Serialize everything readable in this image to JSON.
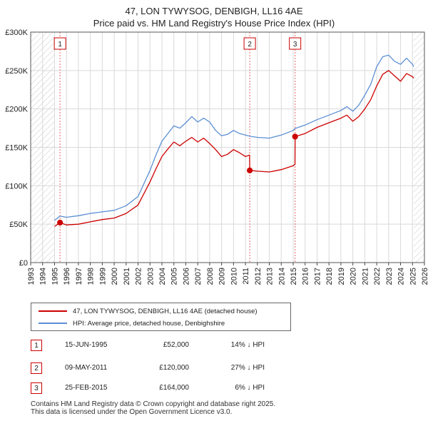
{
  "chart_data": {
    "type": "line",
    "title": "47, LON TYWYSOG, DENBIGH, LL16 4AE",
    "subtitle": "Price paid vs. HM Land Registry's House Price Index (HPI)",
    "xlabel": "",
    "ylabel": "",
    "xlim": [
      1993,
      2026
    ],
    "ylim": [
      0,
      300000
    ],
    "ytick_values": [
      0,
      50000,
      100000,
      150000,
      200000,
      250000,
      300000
    ],
    "ytick_labels": [
      "£0",
      "£50K",
      "£100K",
      "£150K",
      "£200K",
      "£250K",
      "£300K"
    ],
    "xtick_labels": [
      "1993",
      "1994",
      "1995",
      "1996",
      "1997",
      "1998",
      "1999",
      "2000",
      "2001",
      "2002",
      "2003",
      "2004",
      "2005",
      "2006",
      "2007",
      "2008",
      "2009",
      "2010",
      "2011",
      "2012",
      "2013",
      "2014",
      "2015",
      "2016",
      "2017",
      "2018",
      "2019",
      "2020",
      "2021",
      "2022",
      "2023",
      "2024",
      "2025",
      "2026"
    ],
    "grid": true,
    "hatched_before": 1995.0,
    "hatched_after": 2025.1,
    "series": [
      {
        "name": "47, LON TYWYSOG, DENBIGH, LL16 4AE (detached house)",
        "color": "#cc0000",
        "x": [
          1995.0,
          1995.46,
          1996.0,
          1997.0,
          1998.0,
          1999.0,
          2000.0,
          2001.0,
          2002.0,
          2002.5,
          2003.0,
          2003.5,
          2004.0,
          2004.5,
          2005.0,
          2005.5,
          2006.0,
          2006.5,
          2007.0,
          2007.5,
          2008.0,
          2008.5,
          2009.0,
          2009.5,
          2010.0,
          2010.5,
          2011.0,
          2011.35,
          2011.36,
          2012.0,
          2013.0,
          2014.0,
          2015.0,
          2015.15,
          2015.16,
          2016.0,
          2017.0,
          2018.0,
          2019.0,
          2019.5,
          2020.0,
          2020.5,
          2021.0,
          2021.5,
          2022.0,
          2022.5,
          2023.0,
          2023.5,
          2024.0,
          2024.5,
          2025.0,
          2025.1
        ],
        "y": [
          47000,
          52000,
          49000,
          50000,
          53000,
          56000,
          58000,
          64000,
          75000,
          90000,
          105000,
          122000,
          138000,
          148000,
          157000,
          152000,
          158000,
          163000,
          157000,
          162000,
          155000,
          147000,
          138000,
          141000,
          147000,
          143000,
          138000,
          140000,
          120000,
          119000,
          118000,
          121000,
          126000,
          128000,
          164000,
          168000,
          176000,
          182000,
          188000,
          192000,
          184000,
          190000,
          200000,
          212000,
          230000,
          245000,
          250000,
          243000,
          236000,
          246000,
          242000,
          240000
        ]
      },
      {
        "name": "HPI: Average price, detached house, Denbighshire",
        "color": "#5b8fd4",
        "x": [
          1995.0,
          1995.46,
          1996.0,
          1997.0,
          1998.0,
          1999.0,
          2000.0,
          2001.0,
          2002.0,
          2002.5,
          2003.0,
          2003.5,
          2004.0,
          2004.5,
          2005.0,
          2005.5,
          2006.0,
          2006.5,
          2007.0,
          2007.5,
          2008.0,
          2008.5,
          2009.0,
          2009.5,
          2010.0,
          2010.5,
          2011.0,
          2011.35,
          2012.0,
          2013.0,
          2014.0,
          2015.0,
          2015.15,
          2016.0,
          2017.0,
          2018.0,
          2019.0,
          2019.5,
          2020.0,
          2020.5,
          2021.0,
          2021.5,
          2022.0,
          2022.5,
          2023.0,
          2023.5,
          2024.0,
          2024.5,
          2025.0,
          2025.1
        ],
        "y": [
          55000,
          60500,
          59000,
          61000,
          64000,
          66000,
          68000,
          74000,
          86000,
          103000,
          120000,
          140000,
          158000,
          168000,
          178000,
          175000,
          182000,
          190000,
          183000,
          188000,
          183000,
          172000,
          165000,
          167000,
          172000,
          168000,
          166000,
          164500,
          163000,
          162000,
          166000,
          172000,
          174500,
          179000,
          186000,
          192000,
          198000,
          203000,
          197000,
          205000,
          218000,
          232000,
          255000,
          268000,
          270000,
          262000,
          258000,
          266000,
          258000,
          255000
        ]
      }
    ],
    "sale_markers": [
      {
        "label": "1",
        "x": 1995.46,
        "y": 52000
      },
      {
        "label": "2",
        "x": 2011.36,
        "y": 120000
      },
      {
        "label": "3",
        "x": 2015.16,
        "y": 164000
      }
    ]
  },
  "legend": {
    "items": [
      {
        "label": "47, LON TYWYSOG, DENBIGH, LL16 4AE (detached house)",
        "color": "#cc0000"
      },
      {
        "label": "HPI: Average price, detached house, Denbighshire",
        "color": "#5b8fd4"
      }
    ]
  },
  "sales": [
    {
      "num": "1",
      "date": "15-JUN-1995",
      "price": "£52,000",
      "delta": "14% ↓ HPI"
    },
    {
      "num": "2",
      "date": "09-MAY-2011",
      "price": "£120,000",
      "delta": "27% ↓ HPI"
    },
    {
      "num": "3",
      "date": "25-FEB-2015",
      "price": "£164,000",
      "delta": "6% ↓ HPI"
    }
  ],
  "footer": {
    "line1": "Contains HM Land Registry data © Crown copyright and database right 2025.",
    "line2": "This data is licensed under the Open Government Licence v3.0."
  }
}
